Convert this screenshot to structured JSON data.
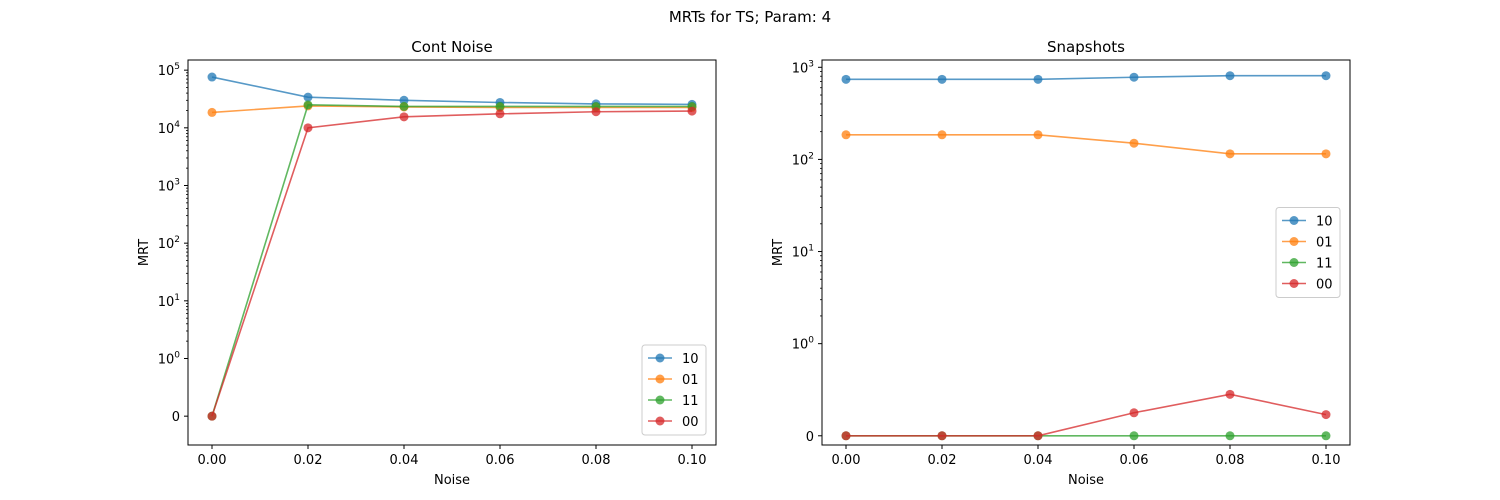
{
  "figure": {
    "suptitle": "MRTs for TS; Param: 4"
  },
  "chart_data": [
    {
      "type": "line",
      "title": "Cont Noise",
      "xlabel": "Noise",
      "ylabel": "MRT",
      "yscale": "symlog",
      "symlog_linthresh": 1,
      "xlim": [
        -0.005,
        0.105
      ],
      "ylim": [
        -0.5,
        150000
      ],
      "x_ticks": [
        0.0,
        0.02,
        0.04,
        0.06,
        0.08,
        0.1
      ],
      "x_tick_labels": [
        "0.00",
        "0.02",
        "0.04",
        "0.06",
        "0.08",
        "0.10"
      ],
      "y_ticks": [
        0,
        1,
        10,
        100,
        1000,
        10000,
        100000
      ],
      "y_tick_labels": [
        {
          "base": "0",
          "exp": ""
        },
        {
          "base": "10",
          "exp": "0"
        },
        {
          "base": "10",
          "exp": "1"
        },
        {
          "base": "10",
          "exp": "2"
        },
        {
          "base": "10",
          "exp": "3"
        },
        {
          "base": "10",
          "exp": "4"
        },
        {
          "base": "10",
          "exp": "5"
        }
      ],
      "grid": false,
      "legend_position": "lower right",
      "x": [
        0.0,
        0.02,
        0.04,
        0.06,
        0.08,
        0.1
      ],
      "series": [
        {
          "name": "10",
          "color": "#1f77b4",
          "values": [
            76000,
            34000,
            30000,
            27500,
            26000,
            25500
          ]
        },
        {
          "name": "01",
          "color": "#ff7f0e",
          "values": [
            18500,
            24000,
            23000,
            22500,
            22500,
            22500
          ]
        },
        {
          "name": "11",
          "color": "#2ca02c",
          "values": [
            0,
            25000,
            23500,
            23500,
            23500,
            23500
          ]
        },
        {
          "name": "00",
          "color": "#d62728",
          "values": [
            0,
            10000,
            15500,
            17500,
            19000,
            19500
          ]
        }
      ]
    },
    {
      "type": "line",
      "title": "Snapshots",
      "xlabel": "Noise",
      "ylabel": "MRT",
      "yscale": "symlog",
      "symlog_linthresh": 1,
      "xlim": [
        -0.005,
        0.105
      ],
      "ylim": [
        -0.1,
        1200
      ],
      "x_ticks": [
        0.0,
        0.02,
        0.04,
        0.06,
        0.08,
        0.1
      ],
      "x_tick_labels": [
        "0.00",
        "0.02",
        "0.04",
        "0.06",
        "0.08",
        "0.10"
      ],
      "y_ticks": [
        0,
        1,
        10,
        100,
        1000
      ],
      "y_tick_labels": [
        {
          "base": "0",
          "exp": ""
        },
        {
          "base": "10",
          "exp": "0"
        },
        {
          "base": "10",
          "exp": "1"
        },
        {
          "base": "10",
          "exp": "2"
        },
        {
          "base": "10",
          "exp": "3"
        }
      ],
      "grid": false,
      "legend_position": "center right",
      "x": [
        0.0,
        0.02,
        0.04,
        0.06,
        0.08,
        0.1
      ],
      "series": [
        {
          "name": "10",
          "color": "#1f77b4",
          "values": [
            740,
            740,
            740,
            780,
            810,
            810
          ]
        },
        {
          "name": "01",
          "color": "#ff7f0e",
          "values": [
            185,
            185,
            185,
            150,
            115,
            115
          ]
        },
        {
          "name": "11",
          "color": "#2ca02c",
          "values": [
            0,
            0,
            0,
            0,
            0,
            0
          ]
        },
        {
          "name": "00",
          "color": "#d62728",
          "values": [
            0,
            0,
            0,
            0.25,
            0.45,
            0.23
          ]
        }
      ]
    }
  ]
}
